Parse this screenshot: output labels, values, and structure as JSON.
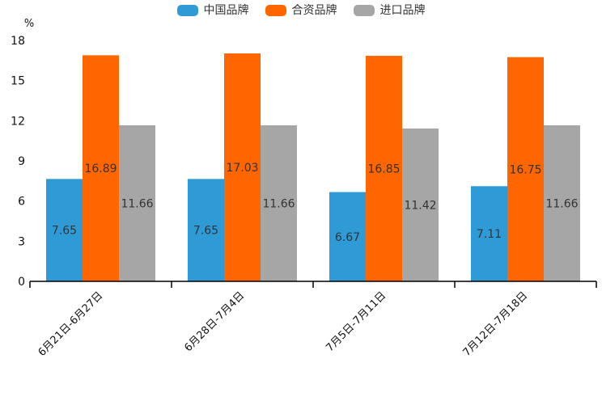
{
  "chart_data": {
    "type": "bar",
    "title": "",
    "legend_position": "top",
    "grid": false,
    "value_labels": "inside-center",
    "categories": [
      "6月21日-6月27日",
      "6月28日-7月4日",
      "7月5日-7月11日",
      "7月12日-7月18日"
    ],
    "series": [
      {
        "name": "中国品牌",
        "color": "#2E9BD6",
        "values": [
          7.65,
          7.65,
          6.67,
          7.11
        ]
      },
      {
        "name": "合资品牌",
        "color": "#FF6600",
        "values": [
          16.89,
          17.03,
          16.85,
          16.75
        ]
      },
      {
        "name": "进口品牌",
        "color": "#A6A6A6",
        "values": [
          11.66,
          11.66,
          11.42,
          11.66
        ]
      }
    ],
    "y_axis": {
      "label": "%",
      "min": 0,
      "max": 18,
      "ticks": [
        0,
        3,
        6,
        9,
        12,
        15,
        18
      ]
    },
    "colors": {
      "axis": "#000000",
      "tick_text": "#111111",
      "value_label_text": "#333333",
      "background": "#ffffff"
    }
  }
}
